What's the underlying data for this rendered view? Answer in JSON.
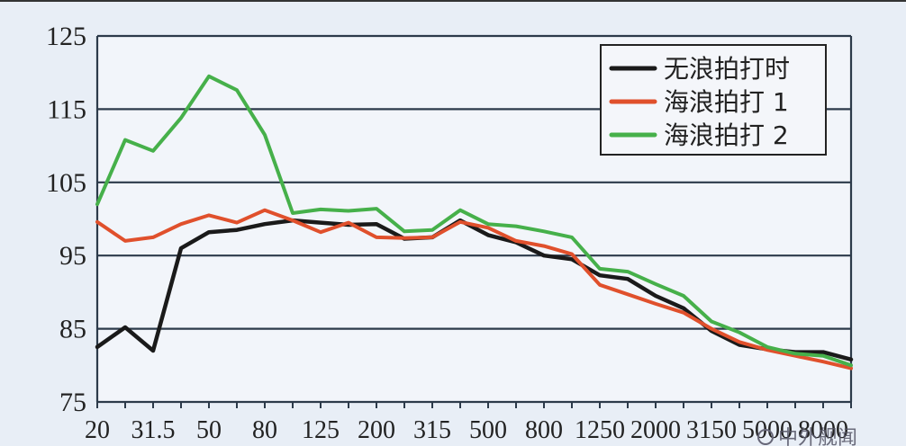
{
  "chart_data": {
    "type": "line",
    "x": [
      "20",
      "25",
      "31.5",
      "40",
      "50",
      "63",
      "80",
      "100",
      "125",
      "160",
      "200",
      "250",
      "315",
      "400",
      "500",
      "630",
      "800",
      "1000",
      "1250",
      "1600",
      "2000",
      "2500",
      "3150",
      "4000",
      "5000",
      "6300",
      "8000",
      "10000"
    ],
    "x_tick_labels": [
      "20",
      "31.5",
      "50",
      "80",
      "125",
      "200",
      "315",
      "500",
      "800",
      "1250",
      "2000",
      "3150",
      "5000",
      "8000"
    ],
    "y_ticks": [
      75,
      85,
      95,
      105,
      115,
      125
    ],
    "ylim": [
      75,
      125
    ],
    "grid": "horizontal",
    "legend_position": "top-right",
    "series": [
      {
        "name": "无浪拍打时",
        "color": "#1a1a1a",
        "values": [
          82.5,
          85.2,
          82.0,
          96.0,
          98.2,
          98.5,
          99.3,
          99.8,
          99.5,
          99.2,
          99.3,
          97.3,
          97.5,
          99.8,
          97.8,
          96.8,
          95.0,
          94.5,
          92.3,
          91.8,
          89.5,
          87.8,
          84.7,
          82.8,
          82.2,
          81.8,
          81.8,
          80.8
        ]
      },
      {
        "name": "海浪拍打 1",
        "color": "#e0502c",
        "values": [
          99.6,
          97.0,
          97.5,
          99.3,
          100.5,
          99.5,
          101.2,
          99.8,
          98.2,
          99.5,
          97.5,
          97.4,
          97.5,
          99.6,
          98.8,
          97.0,
          96.3,
          95.2,
          91.0,
          89.7,
          88.4,
          87.2,
          85.0,
          83.2,
          82.1,
          81.3,
          80.5,
          79.6
        ]
      },
      {
        "name": "海浪拍打 2",
        "color": "#46b04a",
        "values": [
          102.0,
          110.8,
          109.3,
          113.8,
          119.5,
          117.6,
          111.5,
          100.8,
          101.3,
          101.1,
          101.4,
          98.3,
          98.5,
          101.2,
          99.3,
          99.0,
          98.3,
          97.5,
          93.2,
          92.8,
          91.1,
          89.5,
          86.0,
          84.5,
          82.5,
          81.6,
          81.3,
          80.0
        ]
      }
    ],
    "watermark": "中外舰闻"
  }
}
